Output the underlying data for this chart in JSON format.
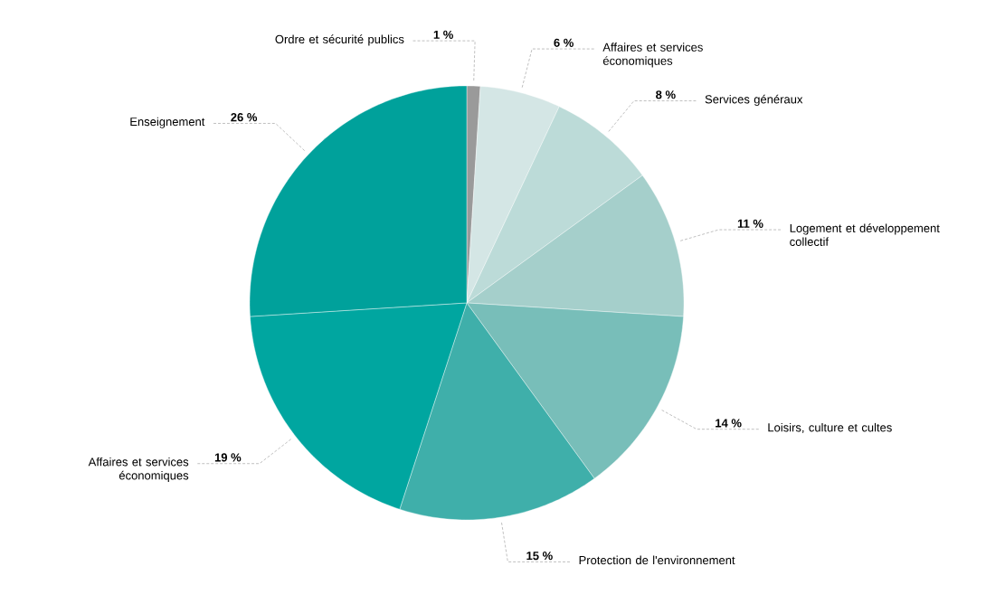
{
  "chart_data": {
    "type": "pie",
    "categories": [
      "Ordre et sécurité publics",
      "Affaires et services économiques",
      "Services généraux",
      "Logement et développement collectif",
      "Loisirs, culture et cultes",
      "Protection de l'environnement",
      "Affaires et services économiques",
      "Enseignement"
    ],
    "values": [
      1,
      6,
      8,
      11,
      14,
      15,
      19,
      26
    ],
    "value_labels": [
      "1 %",
      "6 %",
      "8 %",
      "11 %",
      "14 %",
      "15 %",
      "19 %",
      "26 %"
    ],
    "colors": [
      "#9a9a9a",
      "#d4e6e5",
      "#bcdbd8",
      "#a5cfcb",
      "#78beb9",
      "#3fafaa",
      "#00a6a0",
      "#00a19b"
    ]
  }
}
